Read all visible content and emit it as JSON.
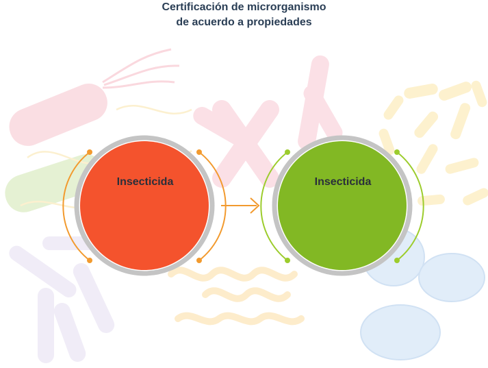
{
  "title": {
    "line1": "Certificación de microrganismo",
    "line2": "de acuerdo a propiedades"
  },
  "nodes": [
    {
      "label": "Insecticida",
      "color": "#f4532d",
      "accent": "#f29a2e"
    },
    {
      "label": "Insecticida",
      "color": "#82b824",
      "accent": "#9ccc2c"
    }
  ],
  "arrow": {
    "color": "#f29a2e",
    "icon": "arrow-right-icon"
  },
  "background": {
    "icons": [
      "bacillus-icon",
      "fungus-icon",
      "spirillum-icon",
      "diplococcus-icon",
      "rod-bacteria-icon"
    ]
  }
}
